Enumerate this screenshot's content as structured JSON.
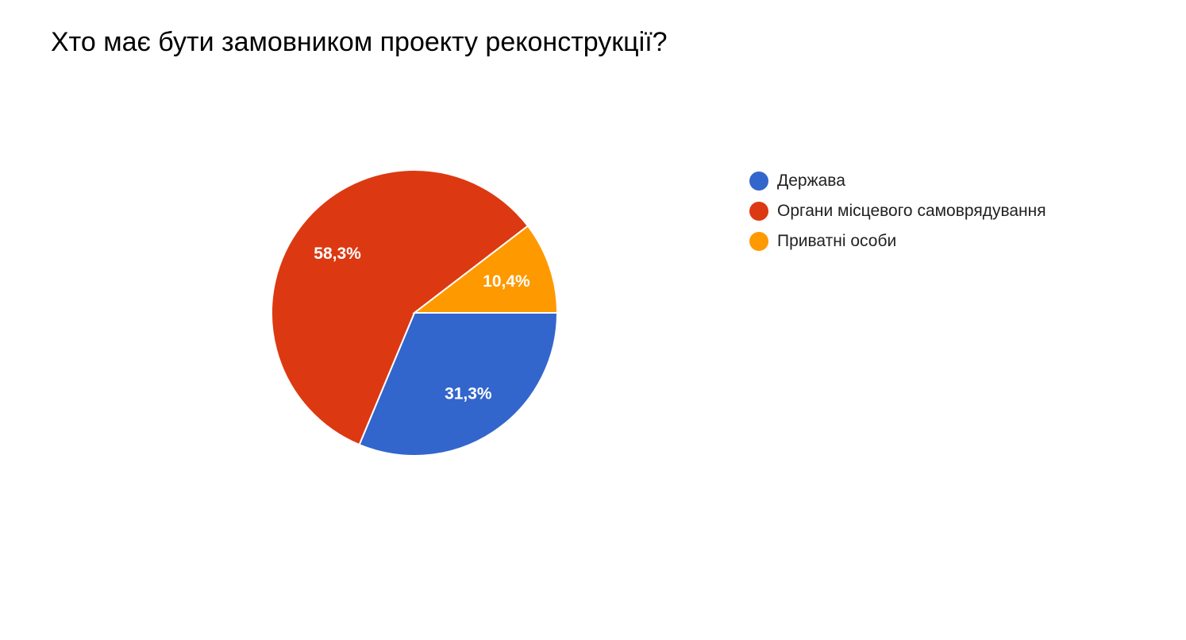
{
  "chart_data": {
    "type": "pie",
    "title": "Хто має бути замовником проекту реконструкції?",
    "categories": [
      "Держава",
      "Органи місцевого самоврядування",
      "Приватні особи"
    ],
    "values": [
      31.3,
      58.3,
      10.4
    ],
    "value_labels": [
      "31,3%",
      "58,3%",
      "10,4%"
    ],
    "colors": [
      "#3366cc",
      "#dc3912",
      "#ff9900"
    ],
    "legend_position": "right"
  }
}
